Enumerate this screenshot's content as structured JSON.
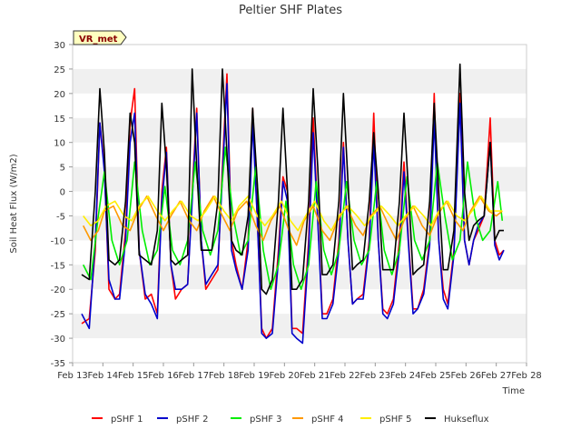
{
  "chart_data": {
    "type": "line",
    "title": "Peltier SHF Plates",
    "xlabel": "Time",
    "ylabel": "Soil Heat Flux (W/m2)",
    "annotation": "VR_met",
    "ylim": [
      -35,
      30
    ],
    "yticks": [
      -35,
      -30,
      -25,
      -20,
      -15,
      -10,
      -5,
      0,
      5,
      10,
      15,
      20,
      25,
      30
    ],
    "xlim": [
      13,
      28
    ],
    "xticks": [
      13,
      14,
      15,
      16,
      17,
      18,
      19,
      20,
      21,
      22,
      23,
      24,
      25,
      26,
      27,
      28
    ],
    "xtick_labels": [
      "Feb 13",
      "Feb 14",
      "Feb 15",
      "Feb 16",
      "Feb 17",
      "Feb 18",
      "Feb 19",
      "Feb 20",
      "Feb 21",
      "Feb 22",
      "Feb 23",
      "Feb 24",
      "Feb 25",
      "Feb 26",
      "Feb 27",
      "Feb 28"
    ],
    "grid_bands": true,
    "legend_position": "bottom-center",
    "series": [
      {
        "name": "pSHF 1",
        "color": "#ff0000",
        "x": [
          13.3,
          13.55,
          13.75,
          13.9,
          14.05,
          14.2,
          14.4,
          14.55,
          14.75,
          14.9,
          15.05,
          15.2,
          15.4,
          15.6,
          15.8,
          15.95,
          16.1,
          16.25,
          16.4,
          16.6,
          16.8,
          16.95,
          17.1,
          17.25,
          17.4,
          17.6,
          17.8,
          17.95,
          18.1,
          18.25,
          18.4,
          18.6,
          18.8,
          18.95,
          19.1,
          19.25,
          19.4,
          19.6,
          19.8,
          19.95,
          20.1,
          20.25,
          20.4,
          20.6,
          20.8,
          20.95,
          21.1,
          21.25,
          21.4,
          21.6,
          21.8,
          21.95,
          22.1,
          22.25,
          22.4,
          22.6,
          22.8,
          22.95,
          23.1,
          23.25,
          23.4,
          23.6,
          23.8,
          23.95,
          24.1,
          24.25,
          24.4,
          24.6,
          24.8,
          24.95,
          25.1,
          25.25,
          25.4,
          25.6,
          25.8,
          25.95,
          26.1,
          26.25,
          26.4,
          26.6,
          26.8,
          26.95,
          27.1,
          27.25
        ],
        "values": [
          -27,
          -26,
          -12,
          14,
          5,
          -20,
          -22,
          -21,
          -8,
          14,
          21,
          -12,
          -22,
          -21,
          -25,
          0,
          9,
          -15,
          -22,
          -20,
          -19,
          0,
          17,
          -10,
          -20,
          -18,
          -16,
          5,
          24,
          -10,
          -15,
          -20,
          -10,
          17,
          -5,
          -28,
          -30,
          -28,
          -12,
          3,
          0,
          -28,
          -28,
          -29,
          -10,
          15,
          -5,
          -25,
          -25,
          -22,
          -10,
          10,
          -10,
          -23,
          -22,
          -21,
          -10,
          16,
          -10,
          -24,
          -25,
          -22,
          -10,
          6,
          -10,
          -24,
          -24,
          -20,
          -10,
          20,
          -10,
          -20,
          -23,
          -12,
          20,
          -10,
          -15,
          -10,
          -8,
          -5,
          15,
          -10,
          -13,
          -12
        ]
      },
      {
        "name": "pSHF 2",
        "color": "#0000cc",
        "x": [
          13.3,
          13.55,
          13.75,
          13.9,
          14.05,
          14.2,
          14.4,
          14.55,
          14.75,
          14.9,
          15.05,
          15.2,
          15.4,
          15.6,
          15.8,
          15.95,
          16.1,
          16.25,
          16.4,
          16.6,
          16.8,
          16.95,
          17.1,
          17.25,
          17.4,
          17.6,
          17.8,
          17.95,
          18.1,
          18.25,
          18.4,
          18.6,
          18.8,
          18.95,
          19.1,
          19.25,
          19.4,
          19.6,
          19.8,
          19.95,
          20.1,
          20.25,
          20.4,
          20.6,
          20.8,
          20.95,
          21.1,
          21.25,
          21.4,
          21.6,
          21.8,
          21.95,
          22.1,
          22.25,
          22.4,
          22.6,
          22.8,
          22.95,
          23.1,
          23.25,
          23.4,
          23.6,
          23.8,
          23.95,
          24.1,
          24.25,
          24.4,
          24.6,
          24.8,
          24.95,
          25.1,
          25.25,
          25.4,
          25.6,
          25.8,
          25.95,
          26.1,
          26.25,
          26.4,
          26.6,
          26.8,
          26.95,
          27.1,
          27.25
        ],
        "values": [
          -25,
          -28,
          -10,
          14,
          4,
          -18,
          -22,
          -22,
          -10,
          10,
          16,
          -12,
          -21,
          -23,
          -26,
          -2,
          8,
          -15,
          -20,
          -20,
          -19,
          -2,
          16,
          -10,
          -19,
          -17,
          -15,
          3,
          22,
          -12,
          -16,
          -20,
          -12,
          14,
          -5,
          -29,
          -30,
          -29,
          -14,
          2,
          -2,
          -29,
          -30,
          -31,
          -12,
          12,
          -6,
          -26,
          -26,
          -23,
          -12,
          9,
          -10,
          -23,
          -22,
          -22,
          -11,
          10,
          -10,
          -25,
          -26,
          -23,
          -12,
          4,
          -11,
          -25,
          -24,
          -21,
          -11,
          15,
          -10,
          -22,
          -24,
          -13,
          18,
          -10,
          -15,
          -10,
          -7,
          -5,
          10,
          -11,
          -14,
          -12
        ]
      },
      {
        "name": "pSHF 3",
        "color": "#00ee00",
        "x": [
          13.35,
          13.6,
          13.85,
          14.05,
          14.3,
          14.55,
          14.8,
          15.05,
          15.3,
          15.55,
          15.8,
          16.05,
          16.3,
          16.55,
          16.8,
          17.05,
          17.3,
          17.55,
          17.8,
          18.05,
          18.3,
          18.55,
          18.8,
          19.05,
          19.3,
          19.55,
          19.8,
          20.05,
          20.3,
          20.55,
          20.8,
          21.05,
          21.3,
          21.55,
          21.8,
          22.05,
          22.3,
          22.55,
          22.8,
          23.05,
          23.3,
          23.55,
          23.8,
          24.05,
          24.3,
          24.55,
          24.8,
          25.05,
          25.3,
          25.55,
          25.8,
          26.05,
          26.3,
          26.55,
          26.8,
          27.05,
          27.2
        ],
        "values": [
          -15,
          -18,
          -5,
          4,
          -10,
          -15,
          -10,
          6,
          -8,
          -15,
          -12,
          1,
          -12,
          -15,
          -10,
          6,
          -8,
          -13,
          -8,
          9,
          -5,
          -13,
          -10,
          5,
          -12,
          -20,
          -15,
          -2,
          -15,
          -20,
          -15,
          2,
          -12,
          -17,
          -12,
          2,
          -10,
          -15,
          -12,
          2,
          -12,
          -17,
          -12,
          3,
          -10,
          -14,
          -10,
          6,
          -5,
          -14,
          -10,
          6,
          -5,
          -10,
          -8,
          2,
          -6
        ]
      },
      {
        "name": "pSHF 4",
        "color": "#ff9900",
        "x": [
          13.35,
          13.6,
          13.85,
          14.05,
          14.35,
          14.65,
          14.9,
          15.15,
          15.45,
          15.75,
          16.0,
          16.25,
          16.55,
          16.85,
          17.1,
          17.35,
          17.65,
          17.95,
          18.2,
          18.45,
          18.75,
          19.05,
          19.3,
          19.55,
          19.85,
          20.15,
          20.4,
          20.65,
          20.95,
          21.25,
          21.5,
          21.75,
          22.05,
          22.35,
          22.6,
          22.85,
          23.15,
          23.45,
          23.7,
          23.95,
          24.25,
          24.55,
          24.8,
          25.05,
          25.35,
          25.65,
          25.9,
          26.15,
          26.45,
          26.75,
          27.0,
          27.2
        ],
        "values": [
          -7,
          -10,
          -8,
          -4,
          -3,
          -7,
          -8,
          -4,
          -1,
          -5,
          -8,
          -5,
          -2,
          -6,
          -8,
          -4,
          -1,
          -5,
          -8,
          -4,
          -2,
          -7,
          -10,
          -6,
          -3,
          -8,
          -11,
          -6,
          -3,
          -8,
          -10,
          -6,
          -3,
          -7,
          -9,
          -5,
          -3,
          -7,
          -10,
          -6,
          -3,
          -7,
          -9,
          -5,
          -2,
          -6,
          -8,
          -4,
          -1,
          -4,
          -5,
          -4
        ]
      },
      {
        "name": "pSHF 5",
        "color": "#ffee00",
        "x": [
          13.35,
          13.6,
          13.85,
          14.1,
          14.4,
          14.7,
          14.95,
          15.2,
          15.5,
          15.8,
          16.05,
          16.3,
          16.6,
          16.9,
          17.15,
          17.4,
          17.7,
          18.0,
          18.25,
          18.5,
          18.8,
          19.1,
          19.35,
          19.6,
          19.9,
          20.2,
          20.45,
          20.7,
          21.0,
          21.3,
          21.55,
          21.8,
          22.1,
          22.4,
          22.65,
          22.9,
          23.2,
          23.5,
          23.75,
          24.0,
          24.3,
          24.6,
          24.85,
          25.1,
          25.4,
          25.7,
          25.95,
          26.2,
          26.5,
          26.8,
          27.05,
          27.2
        ],
        "values": [
          -5,
          -7,
          -6,
          -3,
          -2,
          -5,
          -6,
          -3,
          -1,
          -4,
          -6,
          -4,
          -2,
          -5,
          -6,
          -4,
          -1,
          -4,
          -6,
          -3,
          -1,
          -5,
          -7,
          -5,
          -2,
          -6,
          -8,
          -5,
          -2,
          -6,
          -8,
          -5,
          -3,
          -5,
          -7,
          -5,
          -3,
          -5,
          -7,
          -5,
          -3,
          -5,
          -7,
          -4,
          -2,
          -5,
          -6,
          -4,
          -1,
          -4,
          -4,
          -4
        ]
      },
      {
        "name": "Hukseflux",
        "color": "#000000",
        "x": [
          13.3,
          13.55,
          13.75,
          13.9,
          14.05,
          14.2,
          14.4,
          14.55,
          14.75,
          14.9,
          15.05,
          15.2,
          15.4,
          15.6,
          15.8,
          15.95,
          16.1,
          16.25,
          16.4,
          16.6,
          16.8,
          16.95,
          17.1,
          17.25,
          17.4,
          17.6,
          17.8,
          17.95,
          18.1,
          18.25,
          18.4,
          18.6,
          18.8,
          18.95,
          19.1,
          19.25,
          19.4,
          19.6,
          19.8,
          19.95,
          20.1,
          20.25,
          20.4,
          20.6,
          20.8,
          20.95,
          21.1,
          21.25,
          21.4,
          21.6,
          21.8,
          21.95,
          22.1,
          22.25,
          22.4,
          22.6,
          22.8,
          22.95,
          23.1,
          23.25,
          23.4,
          23.6,
          23.8,
          23.95,
          24.1,
          24.25,
          24.4,
          24.6,
          24.8,
          24.95,
          25.1,
          25.25,
          25.4,
          25.6,
          25.8,
          25.95,
          26.1,
          26.25,
          26.4,
          26.6,
          26.8,
          26.95,
          27.1,
          27.25
        ],
        "values": [
          -17,
          -18,
          0,
          21,
          8,
          -14,
          -15,
          -14,
          -2,
          16,
          10,
          -13,
          -14,
          -15,
          -8,
          18,
          5,
          -14,
          -15,
          -14,
          -13,
          25,
          5,
          -12,
          -12,
          -12,
          -2,
          25,
          8,
          -10,
          -12,
          -13,
          -5,
          17,
          2,
          -20,
          -21,
          -18,
          -2,
          17,
          0,
          -20,
          -20,
          -18,
          -2,
          21,
          5,
          -17,
          -17,
          -15,
          -2,
          20,
          2,
          -16,
          -15,
          -14,
          -2,
          12,
          0,
          -16,
          -16,
          -16,
          -2,
          16,
          0,
          -17,
          -16,
          -15,
          -2,
          18,
          0,
          -16,
          -16,
          -8,
          26,
          0,
          -10,
          -7,
          -6,
          -5,
          10,
          -10,
          -8,
          -8
        ]
      }
    ]
  }
}
